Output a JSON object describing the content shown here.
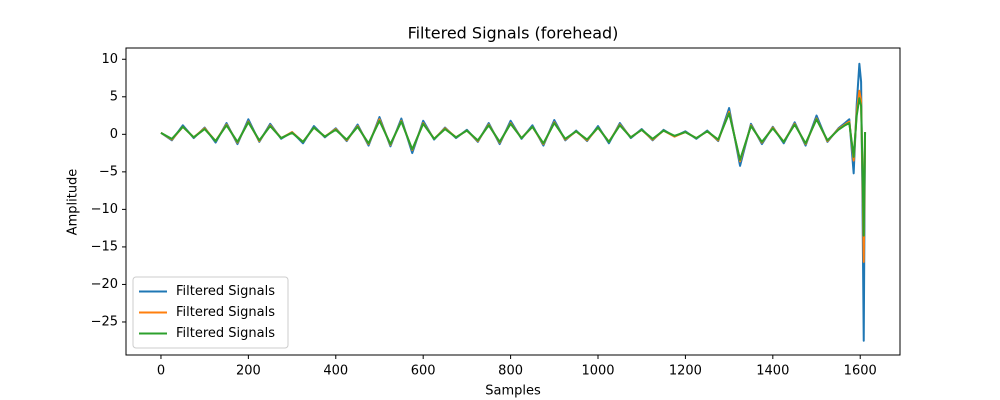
{
  "chart_data": {
    "type": "line",
    "title": "Filtered Signals (forehead)",
    "x_label": "Samples",
    "y_label": "Amplitude",
    "x": [
      0,
      25,
      50,
      75,
      100,
      125,
      150,
      175,
      200,
      225,
      250,
      275,
      300,
      325,
      350,
      375,
      400,
      425,
      450,
      475,
      500,
      525,
      550,
      575,
      600,
      625,
      650,
      675,
      700,
      725,
      750,
      775,
      800,
      825,
      850,
      875,
      900,
      925,
      950,
      975,
      1000,
      1025,
      1050,
      1075,
      1100,
      1125,
      1150,
      1175,
      1200,
      1225,
      1250,
      1275,
      1300,
      1325,
      1350,
      1375,
      1400,
      1425,
      1450,
      1475,
      1500,
      1525,
      1550,
      1565,
      1575,
      1585,
      1592,
      1598,
      1602,
      1605,
      1608,
      1611
    ],
    "series": [
      {
        "name": "Filtered Signals",
        "color": "#1f77b4",
        "values": [
          0.2,
          -0.8,
          1.2,
          -0.5,
          0.9,
          -1.1,
          1.5,
          -1.3,
          2.0,
          -1.0,
          1.4,
          -0.6,
          0.3,
          -1.2,
          1.1,
          -0.4,
          0.8,
          -0.9,
          1.3,
          -1.5,
          2.3,
          -1.6,
          2.1,
          -2.5,
          1.8,
          -0.7,
          0.9,
          -0.5,
          0.6,
          -1.0,
          1.5,
          -1.3,
          1.8,
          -0.6,
          1.2,
          -1.5,
          1.9,
          -0.8,
          0.5,
          -0.9,
          1.1,
          -1.2,
          1.5,
          -0.5,
          0.7,
          -0.8,
          0.6,
          -0.3,
          0.4,
          -0.6,
          0.5,
          -0.9,
          3.5,
          -4.2,
          1.4,
          -1.3,
          1.0,
          -1.2,
          1.6,
          -1.5,
          2.5,
          -1.0,
          0.8,
          1.5,
          2.0,
          -5.2,
          4.0,
          9.4,
          7.0,
          -8.0,
          -27.5,
          0.3
        ]
      },
      {
        "name": "Filtered Signals",
        "color": "#ff7f0e",
        "values": [
          0.2,
          -0.7,
          1.0,
          -0.4,
          0.8,
          -0.9,
          1.3,
          -1.1,
          1.7,
          -0.9,
          1.2,
          -0.5,
          0.3,
          -1.0,
          0.9,
          -0.3,
          0.7,
          -0.8,
          1.1,
          -1.3,
          2.0,
          -1.4,
          1.8,
          -2.1,
          1.5,
          -0.6,
          0.8,
          -0.4,
          0.5,
          -0.9,
          1.3,
          -1.1,
          1.5,
          -0.5,
          1.0,
          -1.3,
          1.6,
          -0.7,
          0.4,
          -0.8,
          0.9,
          -1.0,
          1.3,
          -0.4,
          0.6,
          -0.7,
          0.5,
          -0.3,
          0.3,
          -0.5,
          0.4,
          -0.8,
          3.0,
          -3.6,
          1.2,
          -1.1,
          0.9,
          -1.0,
          1.4,
          -1.3,
          2.1,
          -0.9,
          0.7,
          1.3,
          1.7,
          -3.5,
          3.0,
          5.8,
          4.5,
          -5.0,
          -17.0,
          0.3
        ]
      },
      {
        "name": "Filtered Signals",
        "color": "#2ca02c",
        "values": [
          0.2,
          -0.6,
          1.0,
          -0.4,
          0.7,
          -0.9,
          1.2,
          -1.0,
          1.6,
          -0.8,
          1.1,
          -0.5,
          0.2,
          -1.0,
          0.9,
          -0.3,
          0.6,
          -0.7,
          1.0,
          -1.2,
          1.8,
          -1.3,
          1.7,
          -2.0,
          1.4,
          -0.6,
          0.7,
          -0.4,
          0.5,
          -0.8,
          1.2,
          -1.0,
          1.4,
          -0.5,
          1.0,
          -1.2,
          1.5,
          -0.6,
          0.4,
          -0.7,
          0.9,
          -1.0,
          1.2,
          -0.4,
          0.6,
          -0.6,
          0.5,
          -0.2,
          0.3,
          -0.5,
          0.4,
          -0.7,
          2.8,
          -3.4,
          1.1,
          -1.0,
          0.8,
          -1.0,
          1.3,
          -1.2,
          2.0,
          -0.8,
          0.6,
          1.2,
          1.5,
          -3.0,
          2.5,
          4.8,
          3.8,
          -4.0,
          -13.5,
          0.3
        ]
      }
    ],
    "xlim": [
      -80,
      1691
    ],
    "ylim": [
      -29.4,
      11.5
    ],
    "xticks": [
      0,
      200,
      400,
      600,
      800,
      1000,
      1200,
      1400,
      1600
    ],
    "yticks": [
      10,
      5,
      0,
      {
        "value": -5,
        "label": "−5"
      },
      {
        "value": -10,
        "label": "−10"
      },
      {
        "value": -15,
        "label": "−15"
      },
      {
        "value": -20,
        "label": "−20"
      },
      {
        "value": -25,
        "label": "−25"
      }
    ],
    "grid": false,
    "legend": "lower left"
  }
}
